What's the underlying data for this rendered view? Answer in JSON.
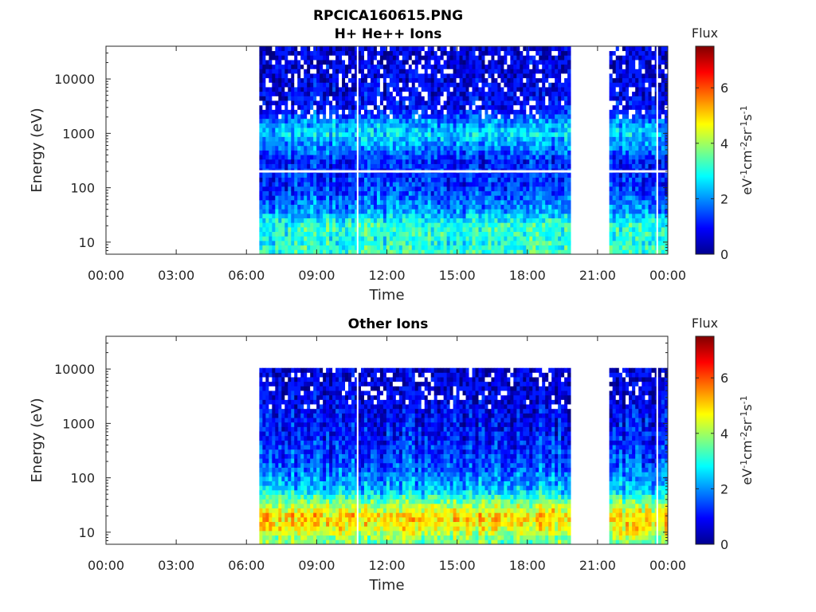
{
  "figure_title": "RPCICA160615.PNG",
  "chart_data": [
    {
      "type": "heatmap",
      "title": "H+ He++ Ions",
      "xlabel": "Time",
      "ylabel": "Energy (eV)",
      "x_ticks": [
        "00:00",
        "03:00",
        "06:00",
        "09:00",
        "12:00",
        "15:00",
        "18:00",
        "21:00",
        "00:00"
      ],
      "x_range_hours": [
        0,
        24
      ],
      "y_scale": "log",
      "y_ticks": [
        "10",
        "100",
        "1000",
        "10000"
      ],
      "y_tick_values": [
        10,
        100,
        1000,
        10000
      ],
      "y_range": [
        6,
        40000
      ],
      "colorbar": {
        "title": "Flux",
        "label": "eV-1cm-2sr-1s-1",
        "ticks": [
          "0",
          "2",
          "4",
          "6"
        ],
        "range": [
          0,
          7.5
        ],
        "colormap": "jet"
      },
      "data_coverage_hours": [
        [
          6.55,
          19.85
        ],
        [
          21.5,
          24.0
        ]
      ],
      "data_gaps_hours": [
        [
          0,
          6.55
        ],
        [
          19.85,
          21.5
        ]
      ],
      "gap_lines_hours": [
        10.75,
        23.55
      ],
      "energy_gap_eV": 200,
      "flux_profile": [
        {
          "energy_eV": 7,
          "flux": 3.3
        },
        {
          "energy_eV": 10,
          "flux": 3.0
        },
        {
          "energy_eV": 20,
          "flux": 3.2
        },
        {
          "energy_eV": 40,
          "flux": 2.0
        },
        {
          "energy_eV": 100,
          "flux": 1.3
        },
        {
          "energy_eV": 180,
          "flux": 1.2
        },
        {
          "energy_eV": 300,
          "flux": 1.1
        },
        {
          "energy_eV": 600,
          "flux": 2.0
        },
        {
          "energy_eV": 1000,
          "flux": 2.6
        },
        {
          "energy_eV": 1800,
          "flux": 1.9
        },
        {
          "energy_eV": 3000,
          "flux": 0.9
        },
        {
          "energy_eV": 10000,
          "flux": 0.6
        },
        {
          "energy_eV": 40000,
          "flux": 0.5
        }
      ]
    },
    {
      "type": "heatmap",
      "title": "Other Ions",
      "xlabel": "Time",
      "ylabel": "Energy (eV)",
      "x_ticks": [
        "00:00",
        "03:00",
        "06:00",
        "09:00",
        "12:00",
        "15:00",
        "18:00",
        "21:00",
        "00:00"
      ],
      "x_range_hours": [
        0,
        24
      ],
      "y_scale": "log",
      "y_ticks": [
        "10",
        "100",
        "1000",
        "10000"
      ],
      "y_tick_values": [
        10,
        100,
        1000,
        10000
      ],
      "y_range": [
        6,
        40000
      ],
      "colorbar": {
        "title": "Flux",
        "label": "eV-1cm-2sr-1s-1",
        "ticks": [
          "0",
          "2",
          "4",
          "6"
        ],
        "range": [
          0,
          7.5
        ],
        "colormap": "jet"
      },
      "data_coverage_hours": [
        [
          6.55,
          19.85
        ],
        [
          21.5,
          24.0
        ]
      ],
      "data_gaps_hours": [
        [
          0,
          6.55
        ],
        [
          19.85,
          21.5
        ]
      ],
      "gap_lines_hours": [
        10.75,
        23.55
      ],
      "energy_max_eV": 11000,
      "flux_profile": [
        {
          "energy_eV": 7,
          "flux": 3.6
        },
        {
          "energy_eV": 12,
          "flux": 4.7
        },
        {
          "energy_eV": 20,
          "flux": 5.0
        },
        {
          "energy_eV": 35,
          "flux": 3.8
        },
        {
          "energy_eV": 60,
          "flux": 2.4
        },
        {
          "energy_eV": 150,
          "flux": 1.6
        },
        {
          "energy_eV": 500,
          "flux": 1.1
        },
        {
          "energy_eV": 2000,
          "flux": 0.8
        },
        {
          "energy_eV": 4000,
          "flux": 0.5
        },
        {
          "energy_eV": 11000,
          "flux": 0.4
        }
      ]
    }
  ]
}
